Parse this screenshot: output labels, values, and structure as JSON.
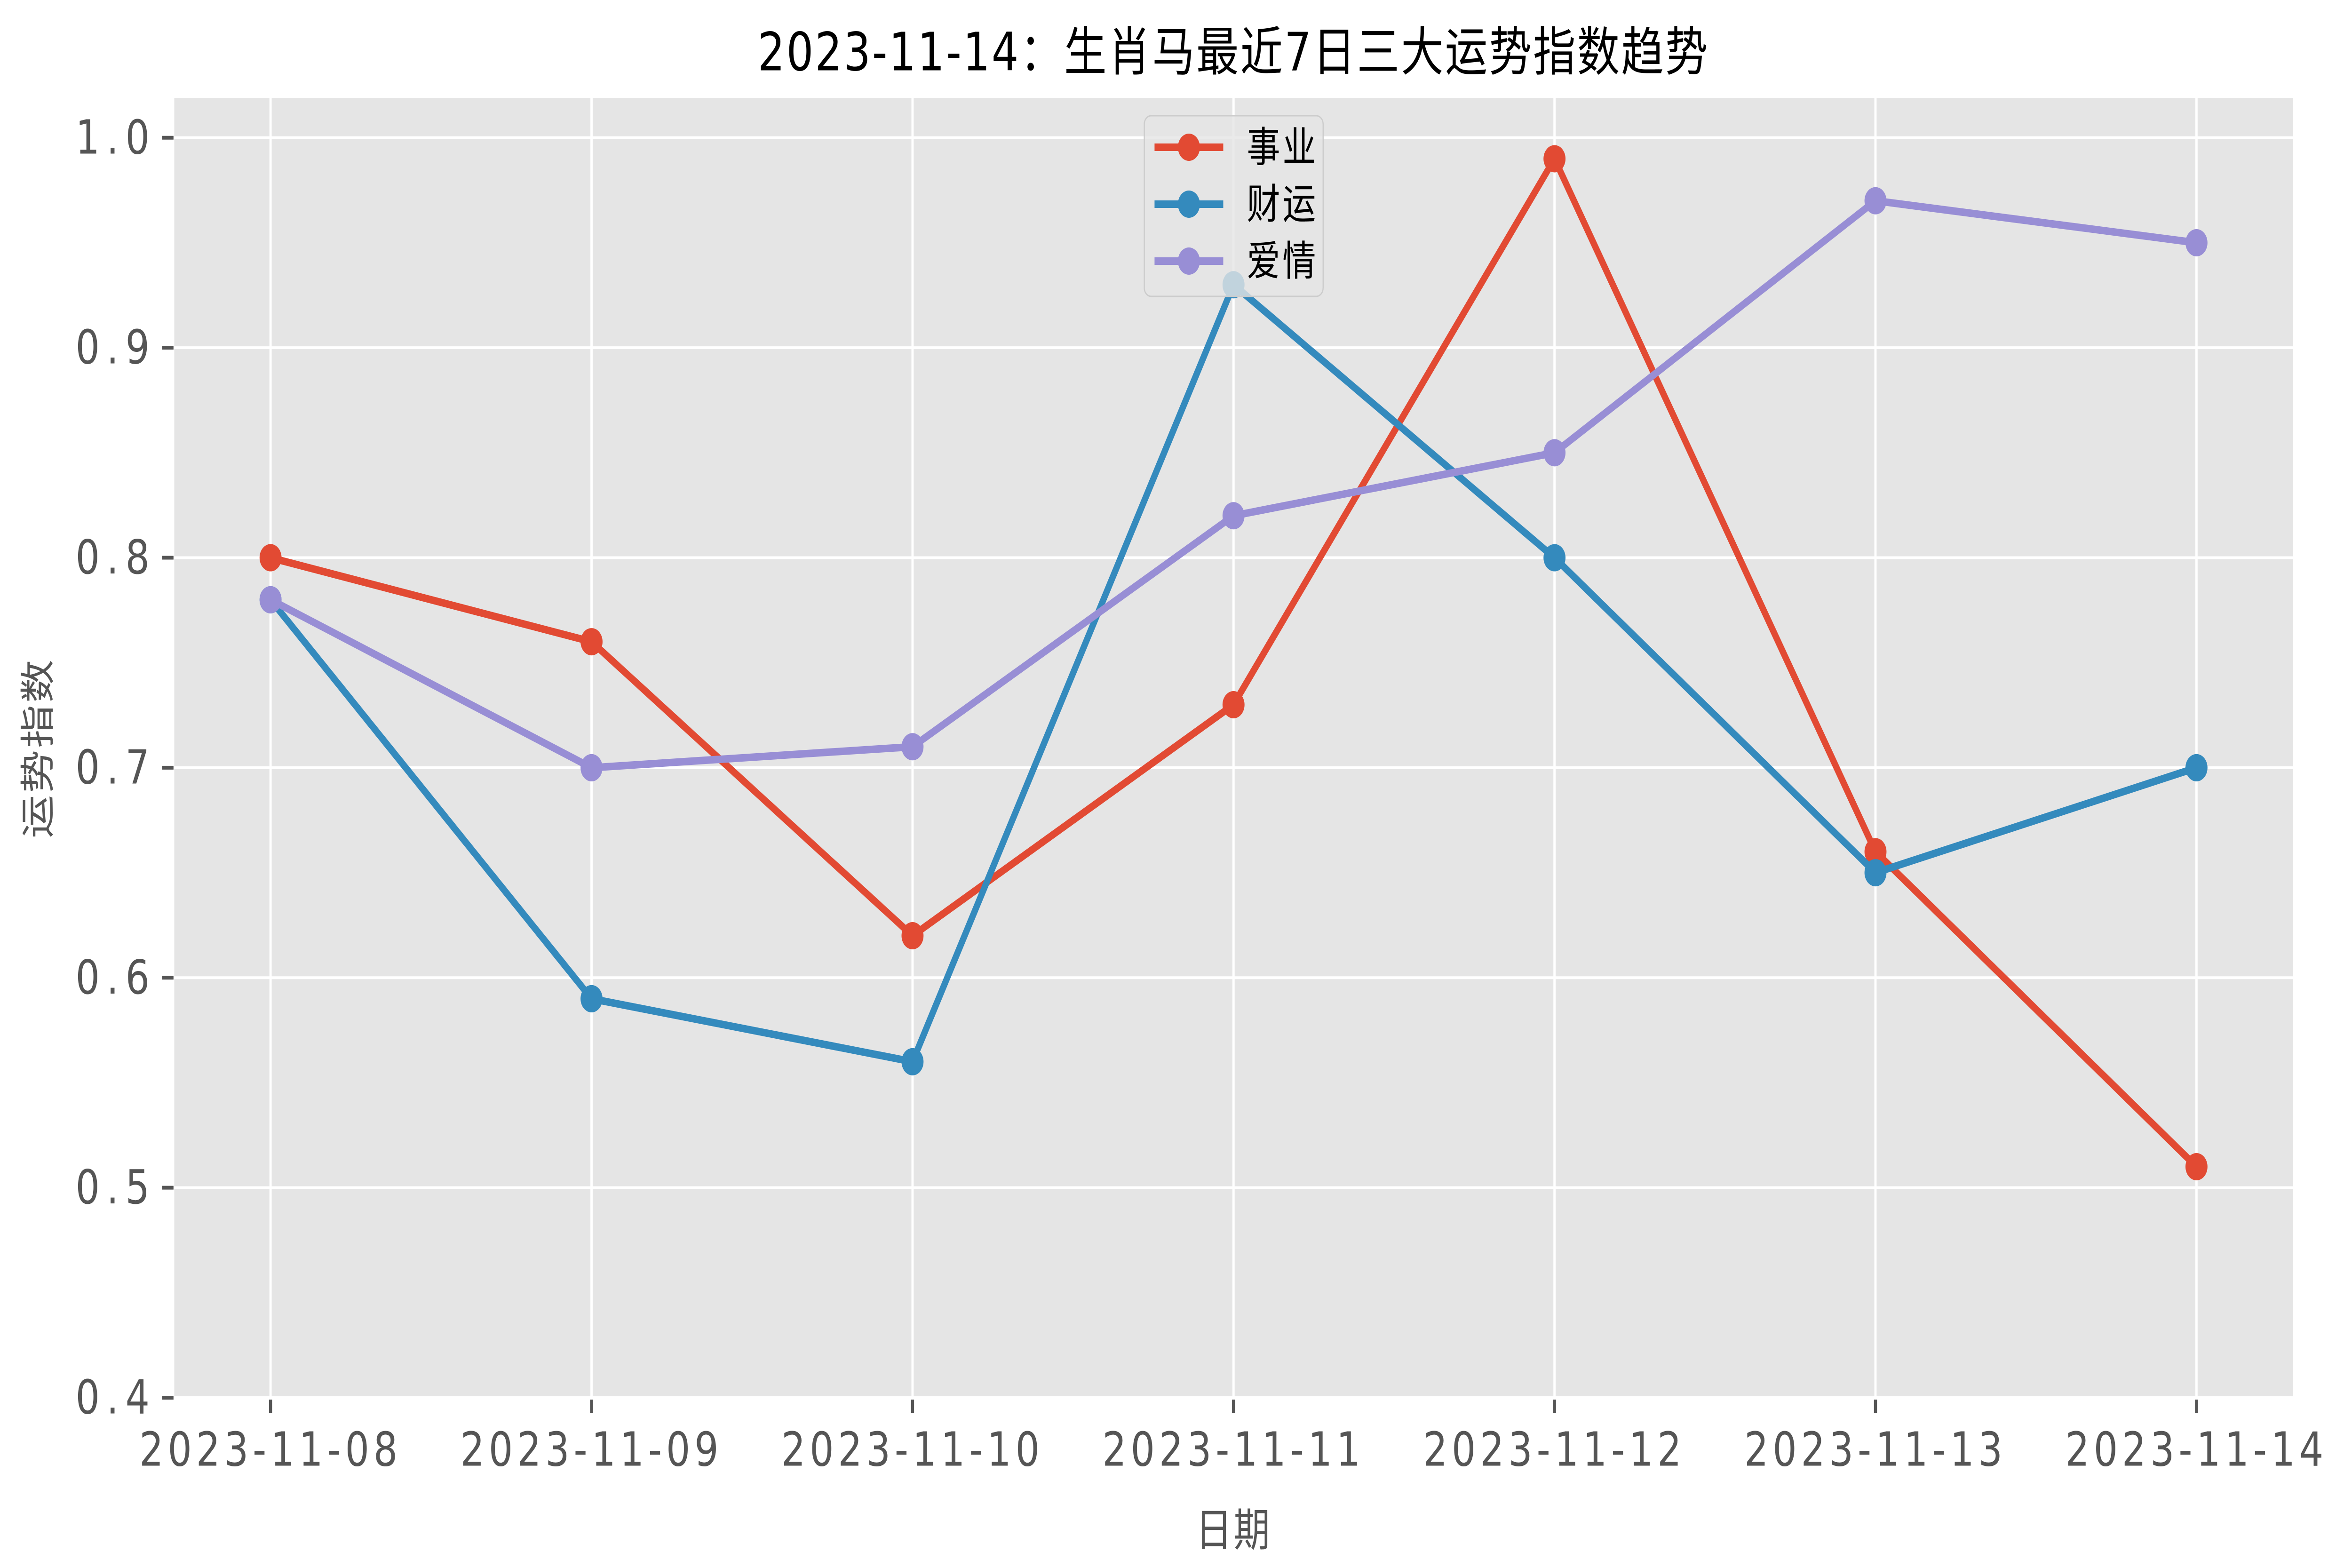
{
  "chart_data": {
    "type": "line",
    "title": "2023-11-14：生肖马最近7日三大运势指数趋势",
    "xlabel": "日期",
    "ylabel": "运势指数",
    "x": [
      "2023-11-08",
      "2023-11-09",
      "2023-11-10",
      "2023-11-11",
      "2023-11-12",
      "2023-11-13",
      "2023-11-14"
    ],
    "series": [
      {
        "name": "事业",
        "color": "#E24A33",
        "values": [
          0.8,
          0.76,
          0.62,
          0.73,
          0.99,
          0.66,
          0.51
        ]
      },
      {
        "name": "财运",
        "color": "#348ABD",
        "values": [
          0.78,
          0.59,
          0.56,
          0.93,
          0.8,
          0.65,
          0.7
        ]
      },
      {
        "name": "爱情",
        "color": "#988ED5",
        "values": [
          0.78,
          0.7,
          0.71,
          0.82,
          0.85,
          0.97,
          0.95
        ]
      }
    ],
    "ylim": [
      0.4,
      1.019
    ],
    "yticks": [
      0.4,
      0.5,
      0.6,
      0.7,
      0.8,
      0.9,
      1.0
    ],
    "ytick_labels": [
      "0.4",
      "0.5",
      "0.6",
      "0.7",
      "0.8",
      "0.9",
      "1.0"
    ],
    "grid": true,
    "legend_position": "upper center",
    "plot_bg_color": "#E5E5E5",
    "grid_color": "#FFFFFF",
    "tick_color": "#555555",
    "text_color": "#555555",
    "title_color": "#000000",
    "legend_face_color": "#E5E5E5",
    "legend_edge_color": "#CCCCCC",
    "legend_text_color": "#000000"
  }
}
